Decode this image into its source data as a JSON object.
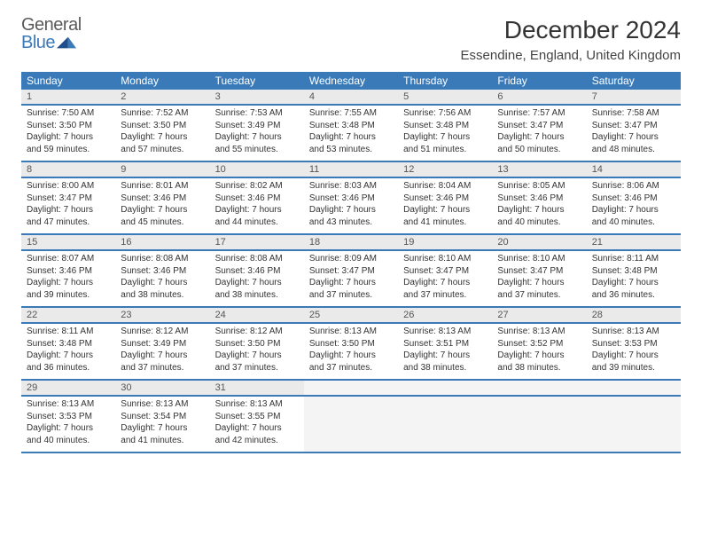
{
  "logo": {
    "word1": "General",
    "word2": "Blue"
  },
  "title": "December 2024",
  "location": "Essendine, England, United Kingdom",
  "colors": {
    "header_bg": "#3a7ab8",
    "header_fg": "#ffffff",
    "daynum_bg": "#eaeaea",
    "row_sep": "#3a7ab8",
    "logo_gray": "#5a5a5a",
    "logo_blue": "#3a7ab8"
  },
  "weekdays": [
    "Sunday",
    "Monday",
    "Tuesday",
    "Wednesday",
    "Thursday",
    "Friday",
    "Saturday"
  ],
  "weeks": [
    [
      {
        "n": "1",
        "l1": "Sunrise: 7:50 AM",
        "l2": "Sunset: 3:50 PM",
        "l3": "Daylight: 7 hours",
        "l4": "and 59 minutes."
      },
      {
        "n": "2",
        "l1": "Sunrise: 7:52 AM",
        "l2": "Sunset: 3:50 PM",
        "l3": "Daylight: 7 hours",
        "l4": "and 57 minutes."
      },
      {
        "n": "3",
        "l1": "Sunrise: 7:53 AM",
        "l2": "Sunset: 3:49 PM",
        "l3": "Daylight: 7 hours",
        "l4": "and 55 minutes."
      },
      {
        "n": "4",
        "l1": "Sunrise: 7:55 AM",
        "l2": "Sunset: 3:48 PM",
        "l3": "Daylight: 7 hours",
        "l4": "and 53 minutes."
      },
      {
        "n": "5",
        "l1": "Sunrise: 7:56 AM",
        "l2": "Sunset: 3:48 PM",
        "l3": "Daylight: 7 hours",
        "l4": "and 51 minutes."
      },
      {
        "n": "6",
        "l1": "Sunrise: 7:57 AM",
        "l2": "Sunset: 3:47 PM",
        "l3": "Daylight: 7 hours",
        "l4": "and 50 minutes."
      },
      {
        "n": "7",
        "l1": "Sunrise: 7:58 AM",
        "l2": "Sunset: 3:47 PM",
        "l3": "Daylight: 7 hours",
        "l4": "and 48 minutes."
      }
    ],
    [
      {
        "n": "8",
        "l1": "Sunrise: 8:00 AM",
        "l2": "Sunset: 3:47 PM",
        "l3": "Daylight: 7 hours",
        "l4": "and 47 minutes."
      },
      {
        "n": "9",
        "l1": "Sunrise: 8:01 AM",
        "l2": "Sunset: 3:46 PM",
        "l3": "Daylight: 7 hours",
        "l4": "and 45 minutes."
      },
      {
        "n": "10",
        "l1": "Sunrise: 8:02 AM",
        "l2": "Sunset: 3:46 PM",
        "l3": "Daylight: 7 hours",
        "l4": "and 44 minutes."
      },
      {
        "n": "11",
        "l1": "Sunrise: 8:03 AM",
        "l2": "Sunset: 3:46 PM",
        "l3": "Daylight: 7 hours",
        "l4": "and 43 minutes."
      },
      {
        "n": "12",
        "l1": "Sunrise: 8:04 AM",
        "l2": "Sunset: 3:46 PM",
        "l3": "Daylight: 7 hours",
        "l4": "and 41 minutes."
      },
      {
        "n": "13",
        "l1": "Sunrise: 8:05 AM",
        "l2": "Sunset: 3:46 PM",
        "l3": "Daylight: 7 hours",
        "l4": "and 40 minutes."
      },
      {
        "n": "14",
        "l1": "Sunrise: 8:06 AM",
        "l2": "Sunset: 3:46 PM",
        "l3": "Daylight: 7 hours",
        "l4": "and 40 minutes."
      }
    ],
    [
      {
        "n": "15",
        "l1": "Sunrise: 8:07 AM",
        "l2": "Sunset: 3:46 PM",
        "l3": "Daylight: 7 hours",
        "l4": "and 39 minutes."
      },
      {
        "n": "16",
        "l1": "Sunrise: 8:08 AM",
        "l2": "Sunset: 3:46 PM",
        "l3": "Daylight: 7 hours",
        "l4": "and 38 minutes."
      },
      {
        "n": "17",
        "l1": "Sunrise: 8:08 AM",
        "l2": "Sunset: 3:46 PM",
        "l3": "Daylight: 7 hours",
        "l4": "and 38 minutes."
      },
      {
        "n": "18",
        "l1": "Sunrise: 8:09 AM",
        "l2": "Sunset: 3:47 PM",
        "l3": "Daylight: 7 hours",
        "l4": "and 37 minutes."
      },
      {
        "n": "19",
        "l1": "Sunrise: 8:10 AM",
        "l2": "Sunset: 3:47 PM",
        "l3": "Daylight: 7 hours",
        "l4": "and 37 minutes."
      },
      {
        "n": "20",
        "l1": "Sunrise: 8:10 AM",
        "l2": "Sunset: 3:47 PM",
        "l3": "Daylight: 7 hours",
        "l4": "and 37 minutes."
      },
      {
        "n": "21",
        "l1": "Sunrise: 8:11 AM",
        "l2": "Sunset: 3:48 PM",
        "l3": "Daylight: 7 hours",
        "l4": "and 36 minutes."
      }
    ],
    [
      {
        "n": "22",
        "l1": "Sunrise: 8:11 AM",
        "l2": "Sunset: 3:48 PM",
        "l3": "Daylight: 7 hours",
        "l4": "and 36 minutes."
      },
      {
        "n": "23",
        "l1": "Sunrise: 8:12 AM",
        "l2": "Sunset: 3:49 PM",
        "l3": "Daylight: 7 hours",
        "l4": "and 37 minutes."
      },
      {
        "n": "24",
        "l1": "Sunrise: 8:12 AM",
        "l2": "Sunset: 3:50 PM",
        "l3": "Daylight: 7 hours",
        "l4": "and 37 minutes."
      },
      {
        "n": "25",
        "l1": "Sunrise: 8:13 AM",
        "l2": "Sunset: 3:50 PM",
        "l3": "Daylight: 7 hours",
        "l4": "and 37 minutes."
      },
      {
        "n": "26",
        "l1": "Sunrise: 8:13 AM",
        "l2": "Sunset: 3:51 PM",
        "l3": "Daylight: 7 hours",
        "l4": "and 38 minutes."
      },
      {
        "n": "27",
        "l1": "Sunrise: 8:13 AM",
        "l2": "Sunset: 3:52 PM",
        "l3": "Daylight: 7 hours",
        "l4": "and 38 minutes."
      },
      {
        "n": "28",
        "l1": "Sunrise: 8:13 AM",
        "l2": "Sunset: 3:53 PM",
        "l3": "Daylight: 7 hours",
        "l4": "and 39 minutes."
      }
    ],
    [
      {
        "n": "29",
        "l1": "Sunrise: 8:13 AM",
        "l2": "Sunset: 3:53 PM",
        "l3": "Daylight: 7 hours",
        "l4": "and 40 minutes."
      },
      {
        "n": "30",
        "l1": "Sunrise: 8:13 AM",
        "l2": "Sunset: 3:54 PM",
        "l3": "Daylight: 7 hours",
        "l4": "and 41 minutes."
      },
      {
        "n": "31",
        "l1": "Sunrise: 8:13 AM",
        "l2": "Sunset: 3:55 PM",
        "l3": "Daylight: 7 hours",
        "l4": "and 42 minutes."
      },
      null,
      null,
      null,
      null
    ]
  ]
}
